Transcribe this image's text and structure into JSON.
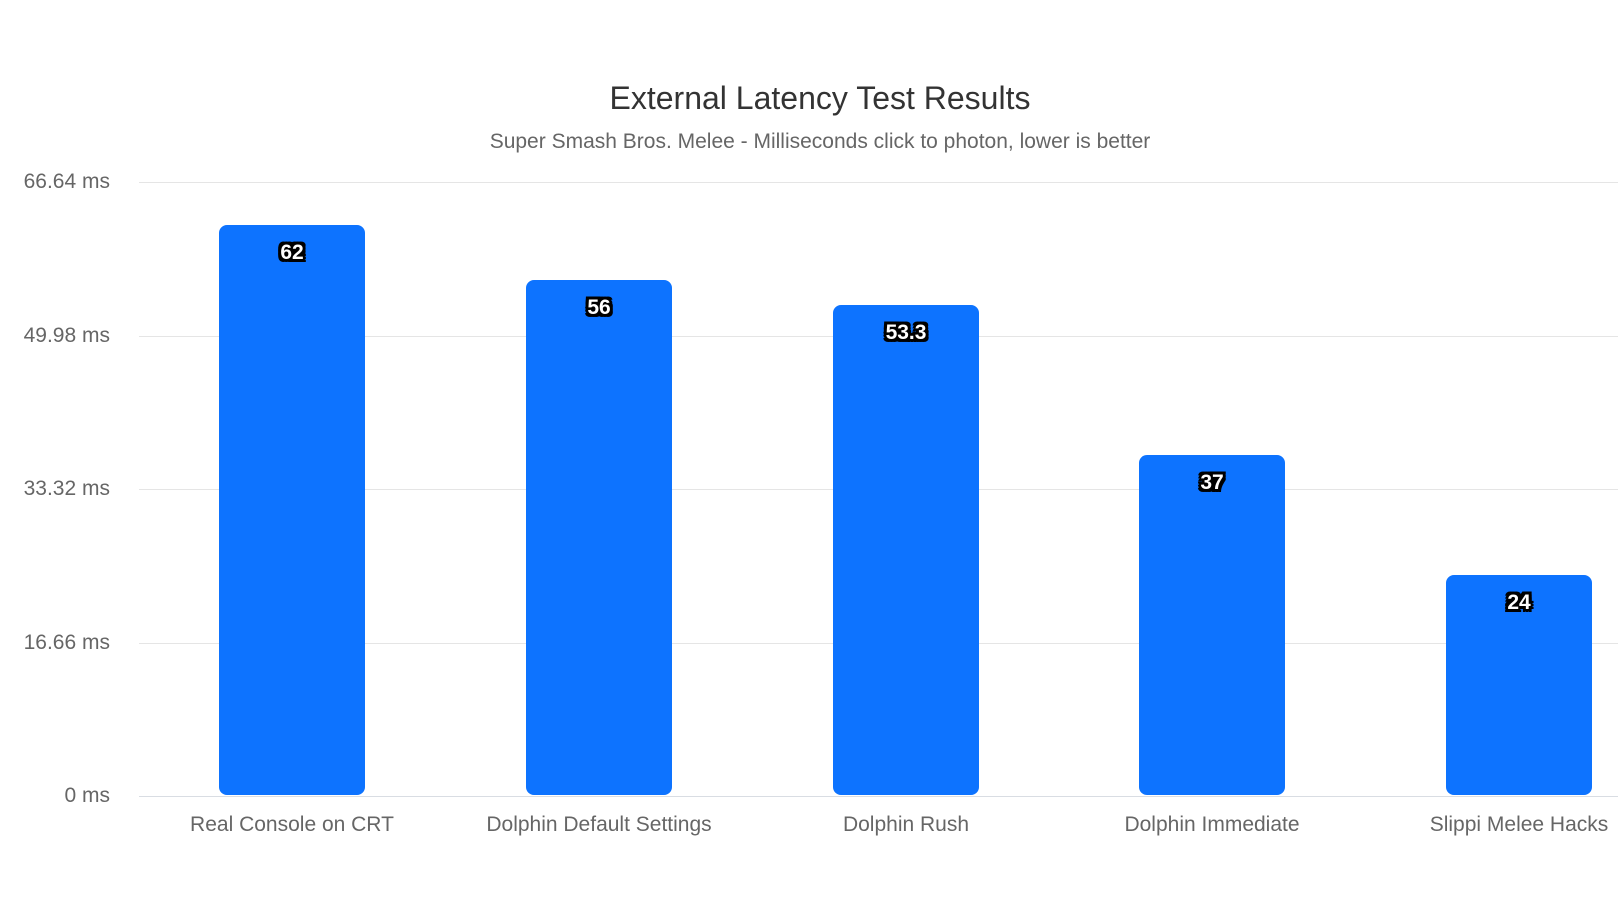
{
  "chart_data": {
    "type": "bar",
    "title": "External Latency Test Results",
    "subtitle": "Super Smash Bros. Melee - Milliseconds click to photon, lower is better",
    "categories": [
      "Real Console on CRT",
      "Dolphin Default Settings",
      "Dolphin Rush",
      "Dolphin Immediate",
      "Slippi Melee Hacks"
    ],
    "values": [
      62,
      56,
      53.3,
      37,
      24
    ],
    "value_labels": [
      "62",
      "56",
      "53.3",
      "37",
      "24"
    ],
    "unit": "ms",
    "xlabel": "",
    "ylabel": "",
    "ylim": [
      0,
      66.64
    ],
    "yticks": [
      0,
      16.66,
      33.32,
      49.98,
      66.64
    ],
    "ytick_labels": [
      "0 ms",
      "16.66 ms",
      "33.32 ms",
      "49.98 ms",
      "66.64 ms"
    ],
    "grid": true,
    "legend_position": "none",
    "colors": {
      "bar": "#0d73ff",
      "title": "#333333",
      "subtitle": "#666666",
      "axis_labels": "#666666",
      "gridline": "#e5e5e5",
      "baseline": "#d9dde3",
      "background": "#ffffff",
      "value_label_text": "#ffffff",
      "value_label_outline": "#000000"
    }
  }
}
